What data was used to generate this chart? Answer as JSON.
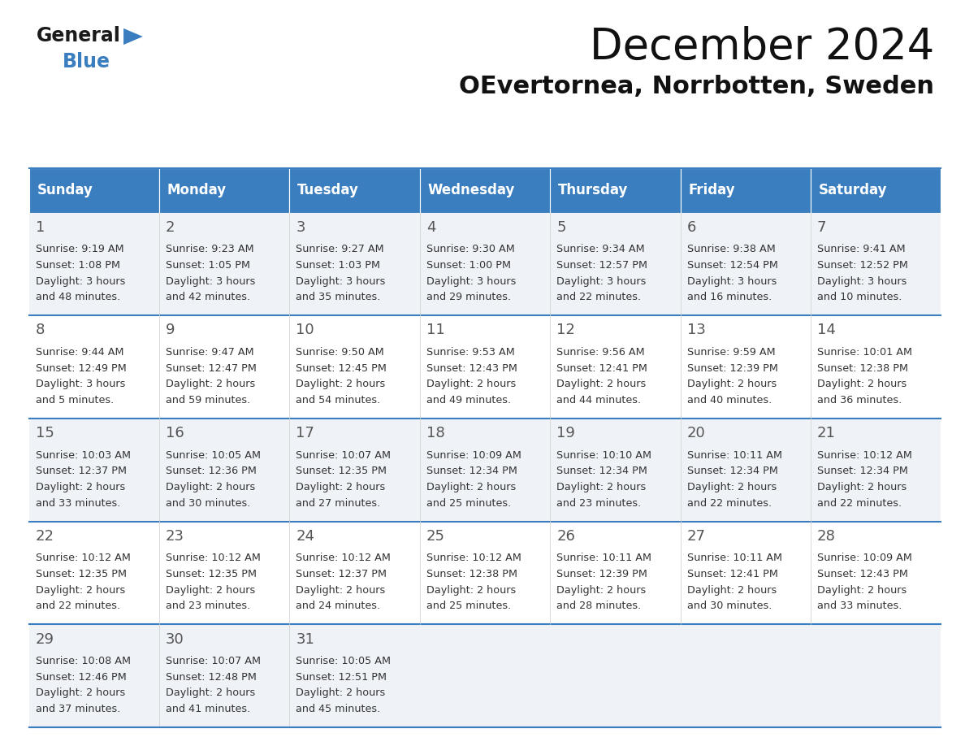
{
  "title": "December 2024",
  "subtitle": "OEvertornea, Norrbotten, Sweden",
  "header_color": "#3a7ebf",
  "header_text_color": "#ffffff",
  "day_names": [
    "Sunday",
    "Monday",
    "Tuesday",
    "Wednesday",
    "Thursday",
    "Friday",
    "Saturday"
  ],
  "bg_color": "#ffffff",
  "cell_bg_even": "#eff3f8",
  "cell_bg_odd": "#ffffff",
  "border_color": "#3a7ebf",
  "text_color": "#333333",
  "weeks": [
    [
      {
        "day": 1,
        "sunrise": "9:19 AM",
        "sunset": "1:08 PM",
        "daylight": "3 hours and 48 minutes"
      },
      {
        "day": 2,
        "sunrise": "9:23 AM",
        "sunset": "1:05 PM",
        "daylight": "3 hours and 42 minutes"
      },
      {
        "day": 3,
        "sunrise": "9:27 AM",
        "sunset": "1:03 PM",
        "daylight": "3 hours and 35 minutes"
      },
      {
        "day": 4,
        "sunrise": "9:30 AM",
        "sunset": "1:00 PM",
        "daylight": "3 hours and 29 minutes"
      },
      {
        "day": 5,
        "sunrise": "9:34 AM",
        "sunset": "12:57 PM",
        "daylight": "3 hours and 22 minutes"
      },
      {
        "day": 6,
        "sunrise": "9:38 AM",
        "sunset": "12:54 PM",
        "daylight": "3 hours and 16 minutes"
      },
      {
        "day": 7,
        "sunrise": "9:41 AM",
        "sunset": "12:52 PM",
        "daylight": "3 hours and 10 minutes"
      }
    ],
    [
      {
        "day": 8,
        "sunrise": "9:44 AM",
        "sunset": "12:49 PM",
        "daylight": "3 hours and 5 minutes"
      },
      {
        "day": 9,
        "sunrise": "9:47 AM",
        "sunset": "12:47 PM",
        "daylight": "2 hours and 59 minutes"
      },
      {
        "day": 10,
        "sunrise": "9:50 AM",
        "sunset": "12:45 PM",
        "daylight": "2 hours and 54 minutes"
      },
      {
        "day": 11,
        "sunrise": "9:53 AM",
        "sunset": "12:43 PM",
        "daylight": "2 hours and 49 minutes"
      },
      {
        "day": 12,
        "sunrise": "9:56 AM",
        "sunset": "12:41 PM",
        "daylight": "2 hours and 44 minutes"
      },
      {
        "day": 13,
        "sunrise": "9:59 AM",
        "sunset": "12:39 PM",
        "daylight": "2 hours and 40 minutes"
      },
      {
        "day": 14,
        "sunrise": "10:01 AM",
        "sunset": "12:38 PM",
        "daylight": "2 hours and 36 minutes"
      }
    ],
    [
      {
        "day": 15,
        "sunrise": "10:03 AM",
        "sunset": "12:37 PM",
        "daylight": "2 hours and 33 minutes"
      },
      {
        "day": 16,
        "sunrise": "10:05 AM",
        "sunset": "12:36 PM",
        "daylight": "2 hours and 30 minutes"
      },
      {
        "day": 17,
        "sunrise": "10:07 AM",
        "sunset": "12:35 PM",
        "daylight": "2 hours and 27 minutes"
      },
      {
        "day": 18,
        "sunrise": "10:09 AM",
        "sunset": "12:34 PM",
        "daylight": "2 hours and 25 minutes"
      },
      {
        "day": 19,
        "sunrise": "10:10 AM",
        "sunset": "12:34 PM",
        "daylight": "2 hours and 23 minutes"
      },
      {
        "day": 20,
        "sunrise": "10:11 AM",
        "sunset": "12:34 PM",
        "daylight": "2 hours and 22 minutes"
      },
      {
        "day": 21,
        "sunrise": "10:12 AM",
        "sunset": "12:34 PM",
        "daylight": "2 hours and 22 minutes"
      }
    ],
    [
      {
        "day": 22,
        "sunrise": "10:12 AM",
        "sunset": "12:35 PM",
        "daylight": "2 hours and 22 minutes"
      },
      {
        "day": 23,
        "sunrise": "10:12 AM",
        "sunset": "12:35 PM",
        "daylight": "2 hours and 23 minutes"
      },
      {
        "day": 24,
        "sunrise": "10:12 AM",
        "sunset": "12:37 PM",
        "daylight": "2 hours and 24 minutes"
      },
      {
        "day": 25,
        "sunrise": "10:12 AM",
        "sunset": "12:38 PM",
        "daylight": "2 hours and 25 minutes"
      },
      {
        "day": 26,
        "sunrise": "10:11 AM",
        "sunset": "12:39 PM",
        "daylight": "2 hours and 28 minutes"
      },
      {
        "day": 27,
        "sunrise": "10:11 AM",
        "sunset": "12:41 PM",
        "daylight": "2 hours and 30 minutes"
      },
      {
        "day": 28,
        "sunrise": "10:09 AM",
        "sunset": "12:43 PM",
        "daylight": "2 hours and 33 minutes"
      }
    ],
    [
      {
        "day": 29,
        "sunrise": "10:08 AM",
        "sunset": "12:46 PM",
        "daylight": "2 hours and 37 minutes"
      },
      {
        "day": 30,
        "sunrise": "10:07 AM",
        "sunset": "12:48 PM",
        "daylight": "2 hours and 41 minutes"
      },
      {
        "day": 31,
        "sunrise": "10:05 AM",
        "sunset": "12:51 PM",
        "daylight": "2 hours and 45 minutes"
      },
      null,
      null,
      null,
      null
    ]
  ],
  "header_fontsize": 38,
  "subtitle_fontsize": 22,
  "day_name_fontsize": 12,
  "day_number_fontsize": 13,
  "cell_text_fontsize": 9.2,
  "logo_general_fontsize": 17,
  "logo_blue_fontsize": 17,
  "title_color": "#111111",
  "subtitle_color": "#111111"
}
